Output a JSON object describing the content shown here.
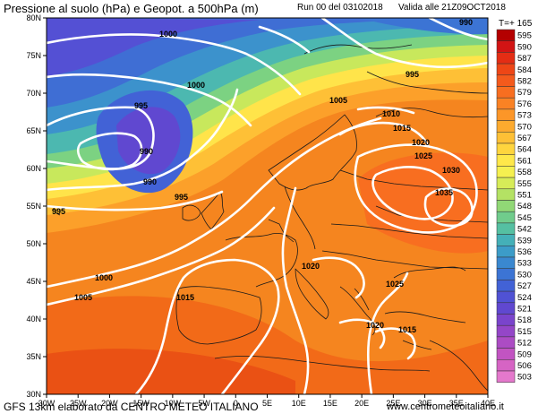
{
  "header": {
    "title": "Pressione al suolo (hPa) e Geopot. a 500hPa (m)",
    "run": "Run 00 del 03102018",
    "valid": "Valida alle 21Z09OCT2018",
    "tplus": "T=+ 165"
  },
  "footer": {
    "left": "GFS 13km elaborato da CENTRO METEO ITALIANO",
    "right": "www.centrometeoitaliano.it"
  },
  "axes": {
    "lon": [
      "30W",
      "25W",
      "20W",
      "15W",
      "10W",
      "5W",
      "0",
      "5E",
      "10E",
      "15E",
      "20E",
      "25E",
      "30E",
      "35E",
      "40E"
    ],
    "lat": [
      "80N",
      "75N",
      "70N",
      "65N",
      "60N",
      "55N",
      "50N",
      "45N",
      "40N",
      "35N",
      "30N"
    ]
  },
  "legend": {
    "values": [
      "595",
      "590",
      "587",
      "584",
      "582",
      "579",
      "576",
      "573",
      "570",
      "567",
      "564",
      "561",
      "558",
      "555",
      "551",
      "548",
      "545",
      "542",
      "539",
      "536",
      "533",
      "530",
      "527",
      "524",
      "521",
      "518",
      "515",
      "512",
      "509",
      "506",
      "503"
    ],
    "colors": [
      "#b40000",
      "#d21414",
      "#e42d14",
      "#ee4616",
      "#f45a1c",
      "#f86e20",
      "#fa8224",
      "#fc9628",
      "#fdaa2e",
      "#fec036",
      "#ffd53e",
      "#ffe84a",
      "#f5f050",
      "#d7ec58",
      "#b4e264",
      "#91d876",
      "#70cc8c",
      "#55c0a2",
      "#44b0b8",
      "#3c9cc8",
      "#3a88d0",
      "#3c74d4",
      "#4262d6",
      "#5052d4",
      "#6048d0",
      "#7a44cc",
      "#9446c8",
      "#ac4cc4",
      "#c254c2",
      "#d664c4",
      "#e478cc"
    ]
  },
  "isobar_labels": [
    "1000",
    "1000",
    "995",
    "990",
    "990",
    "995",
    "995",
    "1000",
    "1005",
    "1015",
    "1005",
    "1010",
    "1015",
    "1020",
    "1025",
    "1030",
    "1035",
    "1020",
    "1025",
    "1020",
    "1015",
    "990",
    "995"
  ]
}
